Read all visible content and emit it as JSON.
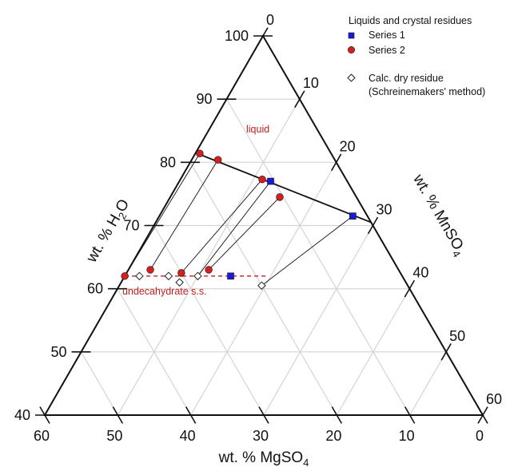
{
  "chart_data": {
    "type": "scatter",
    "subtype": "ternary",
    "axes": {
      "h2o": {
        "label": "wt. % H",
        "label_sub": "2",
        "label_tail": "O",
        "range": [
          40,
          100
        ],
        "ticks": [
          "40",
          "50",
          "60",
          "70",
          "80",
          "90",
          "100"
        ]
      },
      "mnso4": {
        "label": "wt. % MnSO",
        "label_sub": "4",
        "range": [
          0,
          60
        ],
        "ticks": [
          "0",
          "10",
          "20",
          "30",
          "40",
          "50",
          "60"
        ]
      },
      "mgso4": {
        "label": "wt. % MgSO",
        "label_sub": "4",
        "range": [
          0,
          60
        ],
        "ticks": [
          "60",
          "50",
          "40",
          "30",
          "20",
          "10",
          "0"
        ]
      }
    },
    "grid": true,
    "legend": {
      "placement": "top-right",
      "header": "Liquids and crystal residues",
      "entries": [
        "Series 1",
        "Series 2",
        "Calc. dry residue",
        "(Schreinemakers' method)"
      ]
    },
    "annotations": [
      "liquid",
      "undecahydrate s.s."
    ],
    "colors": {
      "series1": "#1a1adb",
      "series2": "#d42020",
      "annotation": "#c81e1e",
      "grid": "#d4d4d4"
    },
    "liquidus": [
      {
        "mgso4": 18.5,
        "mnso4": 0
      },
      {
        "mgso4": 0,
        "mnso4": 29.5
      }
    ],
    "series": [
      {
        "name": "Series 1",
        "marker": "square",
        "points": [
          {
            "mgso4": 10.5,
            "mnso4": 12.5
          },
          {
            "mgso4": 2,
            "mnso4": 26.5
          },
          {
            "mgso4": 23.5,
            "mnso4": 14.5
          }
        ]
      },
      {
        "name": "Series 2",
        "marker": "circle",
        "points": [
          {
            "mgso4": 18,
            "mnso4": 0.6
          },
          {
            "mgso4": 16,
            "mnso4": 3.6
          },
          {
            "mgso4": 11.5,
            "mnso4": 11.2
          },
          {
            "mgso4": 10.5,
            "mnso4": 15
          },
          {
            "mgso4": 38,
            "mnso4": 0
          },
          {
            "mgso4": 34,
            "mnso4": 3
          },
          {
            "mgso4": 30,
            "mnso4": 7.5
          },
          {
            "mgso4": 26,
            "mnso4": 11
          }
        ]
      },
      {
        "name": "Calc. dry residue",
        "marker": "diamond",
        "points": [
          {
            "mgso4": 36,
            "mnso4": 2
          },
          {
            "mgso4": 32,
            "mnso4": 6
          },
          {
            "mgso4": 31,
            "mnso4": 8
          },
          {
            "mgso4": 28,
            "mnso4": 10
          },
          {
            "mgso4": 20,
            "mnso4": 19.5
          }
        ]
      }
    ],
    "tie_lines": [
      {
        "from": {
          "mgso4": 18,
          "mnso4": 0.6
        },
        "to": {
          "mgso4": 38,
          "mnso4": 0
        }
      },
      {
        "from": {
          "mgso4": 16,
          "mnso4": 3.6
        },
        "to": {
          "mgso4": 34,
          "mnso4": 3
        }
      },
      {
        "from": {
          "mgso4": 11.5,
          "mnso4": 11.2
        },
        "to": {
          "mgso4": 30,
          "mnso4": 7.5
        }
      },
      {
        "from": {
          "mgso4": 10.5,
          "mnso4": 12.5
        },
        "to": {
          "mgso4": 28,
          "mnso4": 10
        }
      },
      {
        "from": {
          "mgso4": 10.5,
          "mnso4": 15
        },
        "to": {
          "mgso4": 26,
          "mnso4": 11
        }
      },
      {
        "from": {
          "mgso4": 2,
          "mnso4": 26.5
        },
        "to": {
          "mgso4": 20,
          "mnso4": 19.5
        }
      }
    ],
    "undecahydrate_line": [
      {
        "mgso4": 38,
        "mnso4": 0
      },
      {
        "mgso4": 18.5,
        "mnso4": 19.5
      }
    ]
  }
}
